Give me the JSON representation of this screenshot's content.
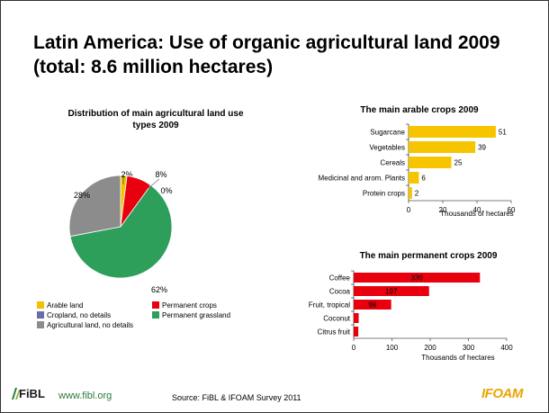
{
  "slide": {
    "title": "Latin America: Use of organic agricultural land 2009 (total: 8.6 million hectares)"
  },
  "colors": {
    "arable": "#F2C200",
    "permanent_crops": "#E8000E",
    "cropland_no_details": "#6B6BA8",
    "permanent_grassland": "#2E9E5B",
    "agri_no_details": "#8C8C8C",
    "bar_arable": "#F7C400",
    "bar_permanent": "#E8000E"
  },
  "chart_data": [
    {
      "type": "pie",
      "title": "Distribution of main agricultural land use types 2009",
      "slices": [
        {
          "name": "Arable land",
          "value": 2,
          "label": "2%"
        },
        {
          "name": "Permanent crops",
          "value": 8,
          "label": "8%"
        },
        {
          "name": "Cropland, no details",
          "value": 0,
          "label": "0%"
        },
        {
          "name": "Permanent grassland",
          "value": 62,
          "label": "62%"
        },
        {
          "name": "Agricultural land, no details",
          "value": 28,
          "label": "28%"
        }
      ],
      "legend": "bottom"
    },
    {
      "type": "bar",
      "orientation": "horizontal",
      "title": "The main arable crops 2009",
      "categories": [
        "Sugarcane",
        "Vegetables",
        "Cereals",
        "Medicinal and arom. Plants",
        "Protein crops"
      ],
      "values": [
        51,
        39,
        25,
        6,
        2
      ],
      "xlabel": "Thousands of hectares",
      "xlim": [
        0,
        60
      ],
      "xticks": [
        "0",
        "20",
        "40",
        "60"
      ]
    },
    {
      "type": "bar",
      "orientation": "horizontal",
      "title": "The main permanent crops 2009",
      "categories": [
        "Coffee",
        "Cocoa",
        "Fruit, tropical",
        "Coconut",
        "Citrus fruit"
      ],
      "values": [
        330,
        197,
        98,
        13,
        12
      ],
      "value_labels": [
        "330",
        "197",
        "98",
        "",
        ""
      ],
      "xlabel": "Thousands of hectares",
      "xlim": [
        0,
        400
      ],
      "xticks": [
        "0",
        "100",
        "200",
        "300",
        "400"
      ]
    }
  ],
  "legend": {
    "arable": "Arable land",
    "permanent_crops": "Permanent crops",
    "cropland": "Cropland, no details",
    "grassland": "Permanent grassland",
    "agri_no_details": "Agricultural land, no details"
  },
  "footer": {
    "logo_text": "FiBL",
    "url": "www.fibl.org",
    "source": "Source: FiBL & IFOAM Survey 2011",
    "ifoam_logo": "IFOAM"
  }
}
